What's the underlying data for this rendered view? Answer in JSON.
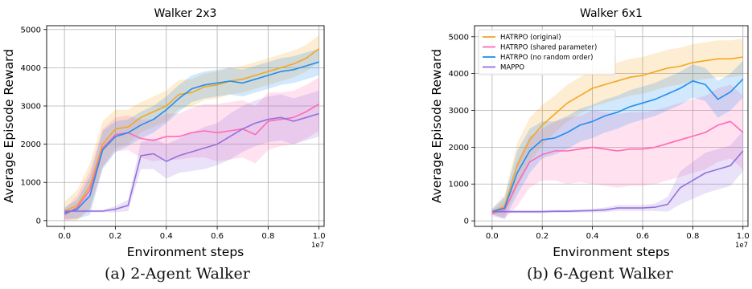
{
  "chart_data": [
    {
      "type": "line",
      "title": "Walker 2x3",
      "xlabel": "Environment steps",
      "ylabel": "Average Episode Reward",
      "x_offset_label": "1e7",
      "xlim": [
        -0.07,
        1.02
      ],
      "ylim": [
        -150,
        5100
      ],
      "xticks": [
        0.0,
        0.2,
        0.4,
        0.6,
        0.8,
        1.0
      ],
      "xtick_labels": [
        "0.0",
        "0.2",
        "0.4",
        "0.6",
        "0.8",
        "1.0"
      ],
      "yticks": [
        0,
        1000,
        2000,
        3000,
        4000,
        5000
      ],
      "ytick_labels": [
        "0",
        "1000",
        "2000",
        "3000",
        "4000",
        "5000"
      ],
      "grid": true,
      "x": [
        0.0,
        0.05,
        0.1,
        0.15,
        0.2,
        0.25,
        0.3,
        0.35,
        0.4,
        0.45,
        0.5,
        0.55,
        0.6,
        0.65,
        0.7,
        0.75,
        0.8,
        0.85,
        0.9,
        0.95,
        1.0
      ],
      "series": [
        {
          "color": "#f5a623",
          "values": [
            250,
            400,
            900,
            2000,
            2400,
            2450,
            2700,
            2850,
            3000,
            3300,
            3350,
            3500,
            3550,
            3650,
            3700,
            3800,
            3900,
            4000,
            4100,
            4250,
            4500
          ],
          "band": [
            250,
            400,
            600,
            600,
            500,
            450,
            400,
            400,
            400,
            380,
            350,
            350,
            350,
            350,
            350,
            350,
            350,
            350,
            350,
            350,
            350
          ]
        },
        {
          "color": "#ff69b4",
          "values": [
            150,
            350,
            800,
            1900,
            2250,
            2300,
            2150,
            2100,
            2200,
            2200,
            2300,
            2350,
            2300,
            2350,
            2400,
            2250,
            2600,
            2650,
            2700,
            2850,
            3050
          ],
          "band": [
            150,
            300,
            500,
            500,
            450,
            450,
            500,
            550,
            600,
            600,
            650,
            700,
            750,
            750,
            750,
            750,
            750,
            700,
            700,
            700,
            700
          ]
        },
        {
          "color": "#1f8ef1",
          "values": [
            200,
            300,
            650,
            1850,
            2200,
            2300,
            2500,
            2650,
            2900,
            3200,
            3450,
            3550,
            3600,
            3650,
            3600,
            3700,
            3800,
            3900,
            3950,
            4050,
            4150
          ],
          "band": [
            150,
            250,
            500,
            500,
            400,
            350,
            350,
            350,
            350,
            350,
            350,
            350,
            350,
            350,
            350,
            350,
            350,
            350,
            350,
            350,
            350
          ]
        },
        {
          "color": "#9370db",
          "values": [
            250,
            250,
            250,
            250,
            300,
            400,
            1700,
            1750,
            1550,
            1700,
            1800,
            1900,
            2000,
            2200,
            2400,
            2550,
            2650,
            2700,
            2600,
            2700,
            2800
          ],
          "band": [
            30,
            30,
            30,
            30,
            80,
            150,
            350,
            400,
            450,
            450,
            500,
            550,
            550,
            600,
            600,
            600,
            600,
            600,
            600,
            600,
            600
          ]
        }
      ]
    },
    {
      "type": "line",
      "title": "Walker 6x1",
      "xlabel": "Environment steps",
      "ylabel": "Average Episode Reward",
      "x_offset_label": "1e7",
      "xlim": [
        -0.07,
        1.02
      ],
      "ylim": [
        -150,
        5300
      ],
      "xticks": [
        0.0,
        0.2,
        0.4,
        0.6,
        0.8,
        1.0
      ],
      "xtick_labels": [
        "0.0",
        "0.2",
        "0.4",
        "0.6",
        "0.8",
        "1.0"
      ],
      "yticks": [
        0,
        1000,
        2000,
        3000,
        4000,
        5000
      ],
      "ytick_labels": [
        "0",
        "1000",
        "2000",
        "3000",
        "4000",
        "5000"
      ],
      "grid": true,
      "legend_position": "upper-left",
      "x": [
        0.0,
        0.05,
        0.1,
        0.15,
        0.2,
        0.25,
        0.3,
        0.35,
        0.4,
        0.45,
        0.5,
        0.55,
        0.6,
        0.65,
        0.7,
        0.75,
        0.8,
        0.85,
        0.9,
        0.95,
        1.0
      ],
      "series": [
        {
          "name": "HATRPO (original)",
          "color": "#f5a623",
          "values": [
            250,
            400,
            1500,
            2200,
            2600,
            2900,
            3200,
            3400,
            3600,
            3700,
            3800,
            3900,
            3950,
            4050,
            4150,
            4200,
            4300,
            4350,
            4400,
            4400,
            4450
          ],
          "band": [
            80,
            300,
            600,
            600,
            550,
            500,
            500,
            500,
            500,
            500,
            500,
            500,
            500,
            500,
            500,
            500,
            500,
            500,
            500,
            500,
            500
          ]
        },
        {
          "name": "HATRPO (shared parameter)",
          "color": "#ff69b4",
          "values": [
            200,
            300,
            1000,
            1600,
            1800,
            1900,
            1900,
            1950,
            2000,
            1950,
            1900,
            1950,
            1950,
            2000,
            2100,
            2200,
            2300,
            2400,
            2600,
            2700,
            2400
          ],
          "band": [
            80,
            250,
            600,
            700,
            700,
            800,
            900,
            900,
            1000,
            1000,
            1000,
            1000,
            1000,
            1000,
            1000,
            1000,
            1000,
            1000,
            1000,
            1000,
            1000
          ]
        },
        {
          "name": "HATRPO (no random order)",
          "color": "#1f8ef1",
          "values": [
            250,
            350,
            1300,
            1900,
            2200,
            2250,
            2400,
            2600,
            2700,
            2850,
            2950,
            3100,
            3200,
            3300,
            3450,
            3600,
            3800,
            3700,
            3300,
            3500,
            3850
          ],
          "band": [
            80,
            300,
            600,
            600,
            500,
            450,
            450,
            450,
            450,
            450,
            450,
            450,
            450,
            450,
            450,
            450,
            450,
            450,
            500,
            500,
            500
          ]
        },
        {
          "name": "MAPPO",
          "color": "#9370db",
          "values": [
            250,
            250,
            250,
            250,
            250,
            260,
            260,
            270,
            280,
            300,
            350,
            350,
            350,
            370,
            450,
            900,
            1100,
            1300,
            1400,
            1500,
            1900
          ],
          "band": [
            40,
            40,
            40,
            40,
            40,
            40,
            40,
            40,
            50,
            60,
            80,
            80,
            80,
            100,
            200,
            450,
            500,
            550,
            550,
            550,
            550
          ]
        }
      ]
    }
  ],
  "captions": {
    "left": "(a) 2-Agent Walker",
    "right": "(b) 6-Agent Walker"
  }
}
